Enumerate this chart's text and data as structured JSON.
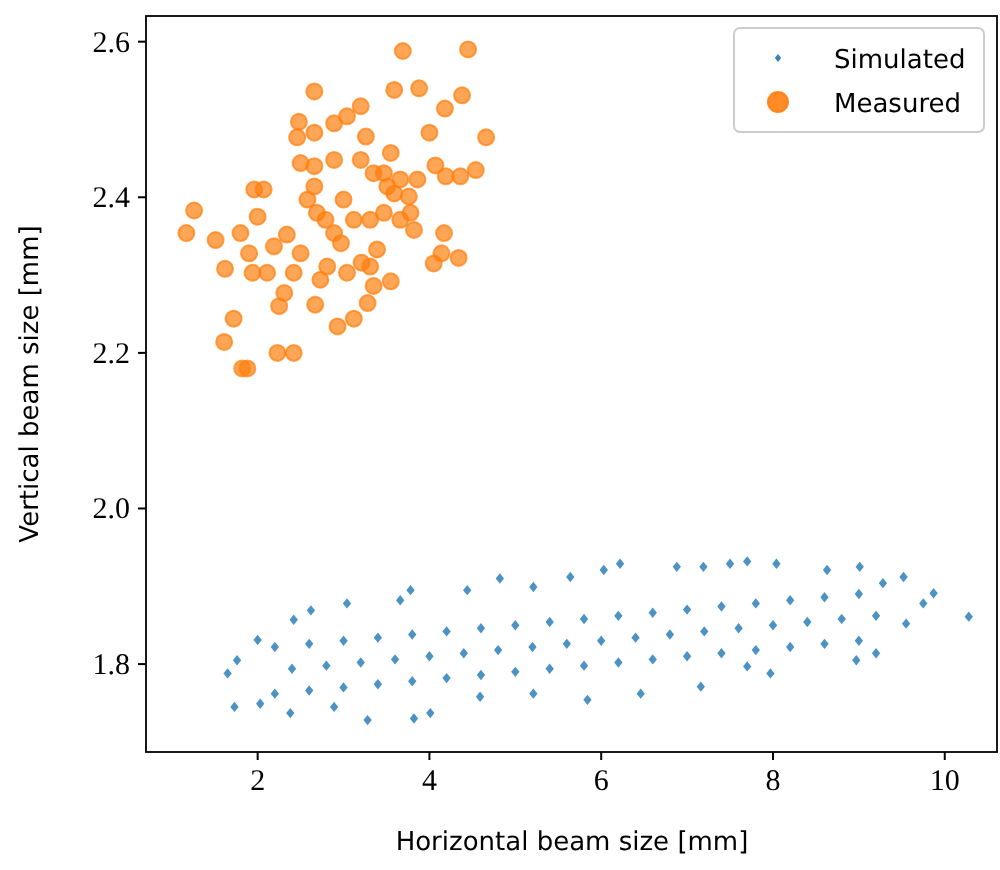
{
  "chart_data": {
    "type": "scatter",
    "xlabel": "Horizontal beam size [mm]",
    "ylabel": "Vertical beam size [mm]",
    "xlim": [
      0.7,
      10.62
    ],
    "ylim": [
      1.687,
      2.633
    ],
    "xticks": [
      2,
      4,
      6,
      8,
      10
    ],
    "yticks": [
      1.8,
      {
        "value": 2,
        "label": "2.0"
      },
      2.2,
      2.4,
      2.6
    ],
    "grid": false,
    "legend": "top right",
    "series": [
      {
        "name": "Simulated",
        "color": "#1f77b4",
        "marker": "diamond",
        "x": [
          1.65,
          1.73,
          1.76,
          2.0,
          2.42,
          2.62,
          3.04,
          3.66,
          3.78,
          4.44,
          4.82,
          5.21,
          5.64,
          6.03,
          6.22,
          6.88,
          7.19,
          7.5,
          7.7,
          8.04,
          8.63,
          9.01,
          9.28,
          9.52,
          9.87,
          9.75,
          10.28,
          9.55,
          9.2,
          8.97,
          7.97,
          7.7,
          7.16,
          6.46,
          5.84,
          5.21,
          4.59,
          4.01,
          3.82,
          3.28,
          2.89,
          2.38,
          2.03,
          2.2,
          2.2,
          2.4,
          2.6,
          2.6,
          2.8,
          3.0,
          3.0,
          3.2,
          3.4,
          3.4,
          3.6,
          3.8,
          3.8,
          4.0,
          4.2,
          4.2,
          4.4,
          4.6,
          4.6,
          4.8,
          5.0,
          5.0,
          5.2,
          5.4,
          5.4,
          5.6,
          5.8,
          5.8,
          6.0,
          6.2,
          6.2,
          6.4,
          6.6,
          6.6,
          6.8,
          7.0,
          7.0,
          7.2,
          7.4,
          7.4,
          7.6,
          7.8,
          7.8,
          8.0,
          8.2,
          8.2,
          8.4,
          8.6,
          8.6,
          8.8,
          9.0,
          9.0,
          9.2
        ],
        "values": [
          1.788,
          1.745,
          1.805,
          1.831,
          1.857,
          1.869,
          1.878,
          1.882,
          1.895,
          1.895,
          1.91,
          1.899,
          1.912,
          1.921,
          1.929,
          1.925,
          1.925,
          1.929,
          1.932,
          1.929,
          1.921,
          1.925,
          1.904,
          1.912,
          1.891,
          1.878,
          1.861,
          1.852,
          1.814,
          1.805,
          1.788,
          1.797,
          1.771,
          1.762,
          1.754,
          1.762,
          1.758,
          1.737,
          1.73,
          1.728,
          1.745,
          1.737,
          1.749,
          1.762,
          1.822,
          1.794,
          1.766,
          1.826,
          1.798,
          1.77,
          1.83,
          1.802,
          1.774,
          1.834,
          1.806,
          1.778,
          1.838,
          1.81,
          1.782,
          1.842,
          1.814,
          1.786,
          1.846,
          1.818,
          1.79,
          1.85,
          1.822,
          1.794,
          1.854,
          1.826,
          1.798,
          1.858,
          1.83,
          1.802,
          1.862,
          1.834,
          1.806,
          1.866,
          1.838,
          1.81,
          1.87,
          1.842,
          1.814,
          1.874,
          1.846,
          1.818,
          1.878,
          1.85,
          1.822,
          1.882,
          1.854,
          1.826,
          1.886,
          1.858,
          1.83,
          1.89,
          1.862
        ]
      },
      {
        "name": "Measured",
        "color": "#ff7f0e",
        "marker": "circle",
        "x": [
          1.17,
          1.26,
          1.51,
          1.62,
          1.61,
          1.72,
          1.82,
          1.88,
          1.8,
          1.96,
          2.07,
          2.0,
          1.9,
          1.94,
          2.11,
          2.23,
          2.42,
          2.25,
          2.31,
          2.42,
          2.48,
          2.46,
          2.66,
          2.66,
          2.5,
          2.66,
          2.58,
          2.69,
          2.73,
          2.67,
          2.81,
          2.89,
          2.93,
          3.12,
          3.04,
          3.0,
          2.89,
          2.89,
          3.04,
          3.2,
          3.2,
          3.35,
          3.31,
          3.31,
          3.28,
          3.39,
          3.47,
          3.51,
          3.55,
          3.59,
          3.66,
          3.82,
          3.78,
          3.76,
          3.86,
          3.59,
          3.69,
          3.88,
          4.0,
          4.07,
          4.18,
          4.19,
          4.17,
          4.14,
          4.05,
          4.36,
          4.38,
          4.45,
          4.54,
          4.34,
          4.66,
          3.55,
          3.35,
          3.21,
          2.97,
          2.79,
          2.34,
          2.19,
          2.5,
          2.66,
          3.12,
          3.26,
          3.47,
          3.66
        ],
        "values": [
          2.354,
          2.383,
          2.345,
          2.308,
          2.214,
          2.244,
          2.18,
          2.18,
          2.354,
          2.41,
          2.41,
          2.375,
          2.328,
          2.303,
          2.303,
          2.2,
          2.2,
          2.26,
          2.277,
          2.303,
          2.497,
          2.477,
          2.483,
          2.536,
          2.444,
          2.44,
          2.397,
          2.38,
          2.294,
          2.262,
          2.311,
          2.354,
          2.234,
          2.244,
          2.303,
          2.397,
          2.448,
          2.495,
          2.504,
          2.517,
          2.448,
          2.431,
          2.371,
          2.311,
          2.264,
          2.333,
          2.38,
          2.414,
          2.457,
          2.405,
          2.371,
          2.358,
          2.38,
          2.401,
          2.423,
          2.538,
          2.588,
          2.54,
          2.483,
          2.441,
          2.514,
          2.427,
          2.354,
          2.328,
          2.315,
          2.427,
          2.531,
          2.59,
          2.435,
          2.322,
          2.477,
          2.292,
          2.286,
          2.316,
          2.341,
          2.371,
          2.352,
          2.337,
          2.328,
          2.414,
          2.371,
          2.478,
          2.431,
          2.423
        ]
      }
    ]
  }
}
